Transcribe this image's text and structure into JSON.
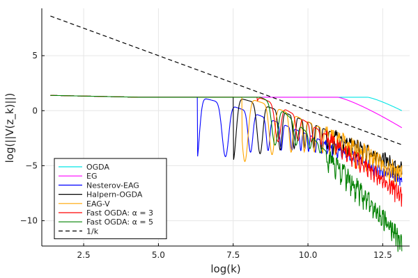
{
  "chart_data": {
    "type": "line",
    "xlabel": "log(k)",
    "ylabel": "log(||V(z_k)||)",
    "xlim": [
      1.1,
      13.4
    ],
    "ylim": [
      -12.3,
      9.3
    ],
    "xticks": [
      2.5,
      5.0,
      7.5,
      10.0,
      12.5
    ],
    "xtick_labels": [
      "2.5",
      "5.0",
      "7.5",
      "10.0",
      "12.5"
    ],
    "yticks": [
      5,
      0,
      -5,
      -10
    ],
    "ytick_labels": [
      "5",
      "0",
      "−5",
      "−10"
    ],
    "grid": true,
    "legend_position": "bottom-left",
    "series": [
      {
        "name": "OGDA",
        "color": "#00e5e5",
        "dash": "",
        "start": 1.39,
        "plateau": 1.22,
        "decay_start": 12.0,
        "end_value": 0.0,
        "oscillation": null
      },
      {
        "name": "EG",
        "color": "#ff00ff",
        "dash": "",
        "start": 1.39,
        "plateau": 1.22,
        "decay_start": 11.0,
        "end_value": -1.55,
        "oscillation": null
      },
      {
        "name": "Nesterov-EAG",
        "color": "#0000ff",
        "dash": "",
        "start": 1.39,
        "plateau": 1.22,
        "decay_start": 6.3,
        "end_value": -6.1,
        "oscillation": {
          "first_dip": 8.08,
          "first_dip_depth": -4.85,
          "band_start": 10.5,
          "band_width": 0.6
        }
      },
      {
        "name": "Halpern-OGDA",
        "color": "#000000",
        "dash": "",
        "start": 1.39,
        "plateau": 1.22,
        "decay_start": 7.5,
        "end_value": -5.0,
        "oscillation": {
          "first_dip": 8.4,
          "first_dip_depth": -4.6,
          "band_start": 10.8,
          "band_width": 0.9
        }
      },
      {
        "name": "EAG-V",
        "color": "#ffa500",
        "dash": "",
        "start": 1.39,
        "plateau": 1.22,
        "decay_start": 7.8,
        "end_value": -5.5,
        "oscillation": {
          "first_dip": 8.8,
          "first_dip_depth": -4.7,
          "band_start": 10.6,
          "band_width": 1.4
        }
      },
      {
        "name": "Fast OGDA: α = 3",
        "color": "#ff0000",
        "dash": "",
        "start": 1.39,
        "plateau": 1.22,
        "decay_start": 8.3,
        "end_value": -7.4,
        "oscillation": {
          "first_dip": 9.0,
          "first_dip_depth": -3.2,
          "band_start": 10.6,
          "band_width": 1.0
        }
      },
      {
        "name": "Fast OGDA: α = 5",
        "color": "#008000",
        "dash": "",
        "start": 1.39,
        "plateau": 1.22,
        "decay_start": 8.4,
        "end_value": -11.6,
        "oscillation": {
          "first_dip": 8.9,
          "first_dip_depth": -3.4,
          "band_start": 10.6,
          "band_width": 1.3
        }
      },
      {
        "name": "1/k",
        "color": "#000000",
        "dash": "6,4",
        "points": [
          [
            1.39,
            8.6
          ],
          [
            13.14,
            -3.1
          ]
        ]
      }
    ]
  }
}
